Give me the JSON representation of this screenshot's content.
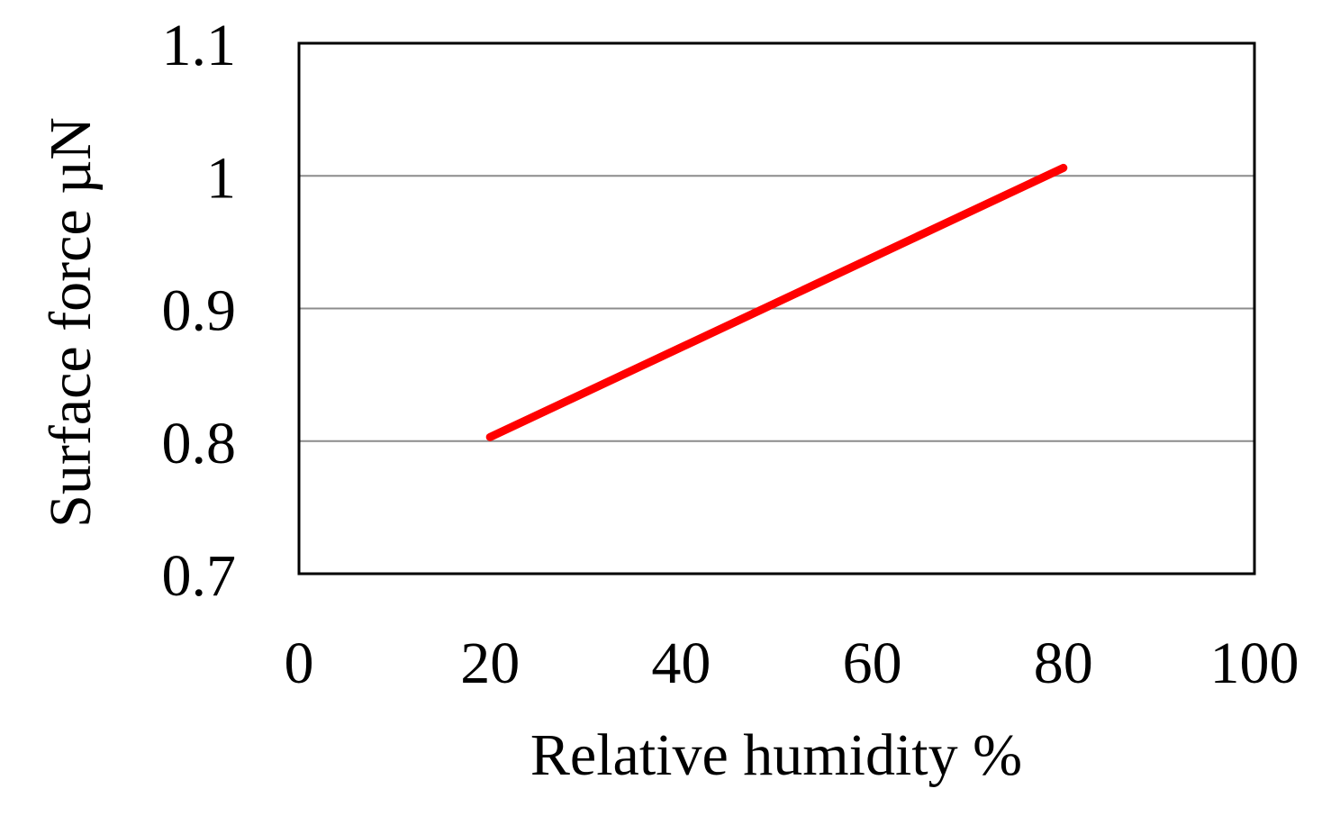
{
  "chart_data": {
    "type": "line",
    "title": "",
    "xlabel": "Relative humidity   %",
    "ylabel": "Surface force  µN",
    "xlim": [
      0,
      100
    ],
    "ylim": [
      0.7,
      1.1
    ],
    "x_ticks": [
      0,
      20,
      40,
      60,
      80,
      100
    ],
    "x_tick_labels": [
      "0",
      "20",
      "40",
      "60",
      "80",
      "100"
    ],
    "y_ticks": [
      0.7,
      0.8,
      0.9,
      1.0,
      1.1
    ],
    "y_tick_labels": [
      "0.7",
      "0.8",
      "0.9",
      "1",
      "1.1"
    ],
    "grid": "horizontal",
    "legend": "none",
    "series": [
      {
        "x": [
          20,
          80
        ],
        "y": [
          0.803,
          1.006
        ],
        "color": "#ff0000"
      }
    ],
    "colors": {
      "line": "#ff0000",
      "grid": "#8c8c8c",
      "frame": "#000000"
    }
  }
}
